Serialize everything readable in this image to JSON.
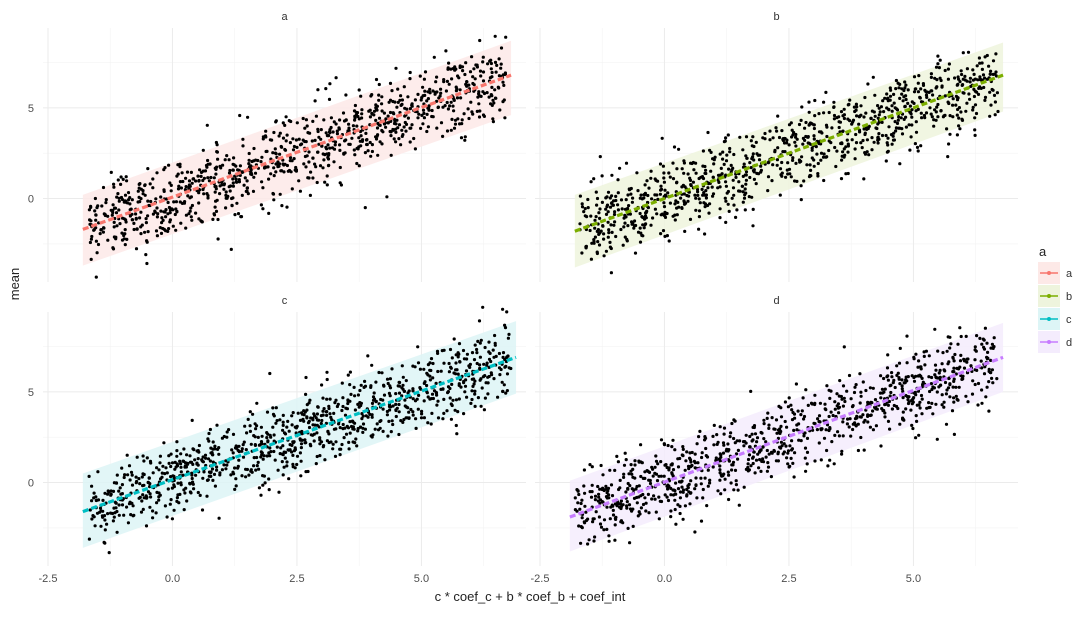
{
  "chart_data": {
    "type": "scatter",
    "subtype": "faceted scatter with linear fit and prediction band",
    "facets": [
      {
        "label": "a",
        "color": "#F8766D",
        "fill": "#FDE9E7",
        "fit": {
          "x_start": -1.8,
          "y_start": -1.7,
          "x_end": 6.8,
          "y_end": 6.8
        },
        "band": {
          "lower_start": -3.7,
          "upper_start": 0.2,
          "lower_end": 4.6,
          "upper_end": 8.7
        }
      },
      {
        "label": "b",
        "color": "#7CAE00",
        "fill": "#EEF4DD",
        "fit": {
          "x_start": -1.8,
          "y_start": -1.8,
          "x_end": 6.8,
          "y_end": 6.8
        },
        "band": {
          "lower_start": -3.8,
          "upper_start": 0.2,
          "lower_end": 4.8,
          "upper_end": 8.6
        }
      },
      {
        "label": "c",
        "color": "#00BFC4",
        "fill": "#DDF5F6",
        "fit": {
          "x_start": -1.8,
          "y_start": -1.6,
          "x_end": 6.9,
          "y_end": 6.9
        },
        "band": {
          "lower_start": -3.6,
          "upper_start": 0.5,
          "lower_end": 4.9,
          "upper_end": 8.9
        }
      },
      {
        "label": "d",
        "color": "#C77CFF",
        "fill": "#F4ECFD",
        "fit": {
          "x_start": -1.9,
          "y_start": -1.9,
          "x_end": 6.8,
          "y_end": 6.9
        },
        "band": {
          "lower_start": -3.8,
          "upper_start": 0.1,
          "lower_end": 5.0,
          "upper_end": 8.8
        }
      }
    ],
    "points_per_facet_approx": 1000,
    "point_noise_sd_approx": 1.05,
    "x_range": [
      -2.6,
      7.1
    ],
    "y_range": [
      -4.6,
      9.4
    ],
    "x_ticks": [
      "-2.5",
      "0.0",
      "2.5",
      "5.0"
    ],
    "x_tick_values": [
      -2.5,
      0,
      2.5,
      5
    ],
    "y_ticks": [
      "0",
      "5"
    ],
    "y_tick_values": [
      0,
      5
    ],
    "xlabel": "c * coef_c + b * coef_b + coef_int",
    "ylabel": "mean",
    "legend": {
      "title": "a",
      "placement": "right",
      "items": [
        {
          "label": "a",
          "color": "#F8766D"
        },
        {
          "label": "b",
          "color": "#7CAE00"
        },
        {
          "label": "c",
          "color": "#00BFC4"
        },
        {
          "label": "d",
          "color": "#C77CFF"
        }
      ]
    },
    "grid": true,
    "theme": "minimal"
  }
}
